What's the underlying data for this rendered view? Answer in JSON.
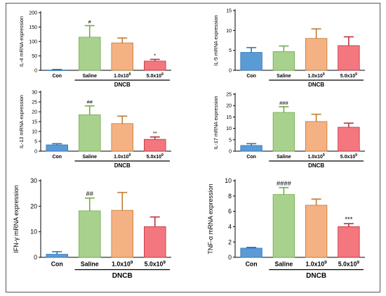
{
  "colors": {
    "con": "#5b9bd5",
    "saline": "#a9d18e",
    "dose_low": "#f4b183",
    "dose_high": "#f4777f",
    "outline_con": "#2e75b6",
    "outline_saline": "#70ad47",
    "outline_dose_low": "#c07c34",
    "outline_dose_high": "#c0303a"
  },
  "chart_data": [
    {
      "type": "bar",
      "ylabel": "IL-4 mRNA expression",
      "categories": [
        "Con",
        "Saline",
        "1.0x10",
        "5.0x10"
      ],
      "superscripts": [
        "",
        "",
        "9",
        "9"
      ],
      "values": [
        1,
        115,
        95,
        32
      ],
      "errors": [
        2,
        40,
        17,
        6
      ],
      "significance": [
        "",
        "#",
        "",
        "*"
      ],
      "ylim": [
        0,
        200
      ],
      "yticks": [
        "0",
        "50",
        "100",
        "150",
        "200"
      ],
      "group_label": "DNCB"
    },
    {
      "type": "bar",
      "ylabel": "IL-5 mRNA expression",
      "categories": [
        "Con",
        "Saline",
        "1.0x10",
        "5.0x10"
      ],
      "superscripts": [
        "",
        "",
        "9",
        "9"
      ],
      "values": [
        4.5,
        4.7,
        8,
        6.2
      ],
      "errors": [
        1.2,
        1.4,
        2.4,
        2.2
      ],
      "significance": [
        "",
        "",
        "",
        ""
      ],
      "ylim": [
        0,
        15
      ],
      "yticks": [
        "0",
        "5",
        "10",
        "15"
      ],
      "group_label": "DNCB"
    },
    {
      "type": "bar",
      "ylabel": "IL-13 mRNA expression",
      "categories": [
        "Con",
        "Saline",
        "1.0x10",
        "5.0x10"
      ],
      "superscripts": [
        "",
        "",
        "9",
        "9"
      ],
      "values": [
        3.2,
        18.5,
        14,
        6
      ],
      "errors": [
        0.6,
        4.5,
        3.8,
        1.2
      ],
      "significance": [
        "",
        "##",
        "",
        "**"
      ],
      "ylim": [
        0,
        30
      ],
      "yticks": [
        "0",
        "5",
        "10",
        "15",
        "20",
        "25",
        "30"
      ],
      "group_label": "DNCB"
    },
    {
      "type": "bar",
      "ylabel": "IL-17 mRNA expression",
      "categories": [
        "Con",
        "Saline",
        "1.0x10",
        "5.0x10"
      ],
      "superscripts": [
        "",
        "",
        "9",
        "9"
      ],
      "values": [
        2.5,
        17,
        13,
        10.5
      ],
      "errors": [
        0.8,
        2.5,
        3.2,
        1.8
      ],
      "significance": [
        "",
        "###",
        "",
        ""
      ],
      "ylim": [
        0,
        25
      ],
      "yticks": [
        "0",
        "5",
        "10",
        "15",
        "20",
        "25"
      ],
      "group_label": "DNCB"
    },
    {
      "type": "bar",
      "ylabel": "IFN-γ mRNA expression",
      "categories": [
        "Con",
        "Saline",
        "1.0x10",
        "5.0x10"
      ],
      "superscripts": [
        "",
        "",
        "9",
        "9"
      ],
      "values": [
        1.2,
        18.2,
        18.4,
        12
      ],
      "errors": [
        1,
        5,
        7,
        3.8
      ],
      "significance": [
        "",
        "##",
        "",
        ""
      ],
      "ylim": [
        0,
        30
      ],
      "yticks": [
        "0",
        "10",
        "20",
        "30"
      ],
      "group_label": "DNCB"
    },
    {
      "type": "bar",
      "ylabel": "TNF-α mRNA expression",
      "categories": [
        "Con",
        "Saline",
        "1.0x10",
        "5.0x10"
      ],
      "superscripts": [
        "",
        "",
        "9",
        "9"
      ],
      "values": [
        1.2,
        8.2,
        6.8,
        4
      ],
      "errors": [
        0.1,
        0.9,
        0.8,
        0.4
      ],
      "significance": [
        "",
        "####",
        "",
        "***"
      ],
      "ylim": [
        0,
        10
      ],
      "yticks": [
        "0",
        "2",
        "4",
        "6",
        "8",
        "10"
      ],
      "group_label": "DNCB"
    }
  ]
}
